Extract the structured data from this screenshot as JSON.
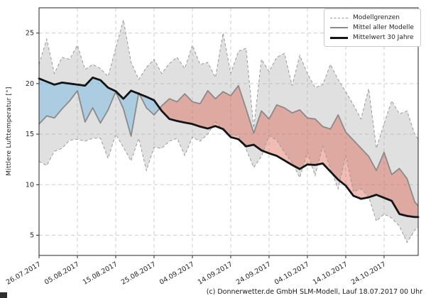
{
  "chart_data": {
    "type": "area",
    "title": "",
    "ylabel": "Mittlere Lufttemperatur [°]",
    "caption": "(c) Donnerwetter.de GmbH SLM-Modell, Lauf 18.07.2017 00 Uhr",
    "grid": true,
    "legend": {
      "position": "top-right",
      "entries": [
        {
          "label": "Modellgrenzen",
          "style": "dashed-gray"
        },
        {
          "label": "Mittel aller Modelle",
          "style": "solid-gray"
        },
        {
          "label": "Mittelwert 30 Jahre",
          "style": "thick-black"
        }
      ]
    },
    "x_unit": "days since 26.07.2017",
    "x_tick_labels": [
      "26.07.2017",
      "05.08.2017",
      "15.08.2017",
      "25.08.2017",
      "04.09.2017",
      "14.09.2017",
      "24.09.2017",
      "04.10.2017",
      "14.10.2017",
      "24.10.2017"
    ],
    "x_tick_days": [
      0,
      10,
      20,
      30,
      40,
      50,
      60,
      70,
      80,
      90
    ],
    "xlim_days": [
      0,
      98.9
    ],
    "ylim": [
      3,
      27.5
    ],
    "yticks": [
      5,
      10,
      15,
      20,
      25
    ],
    "x_days": [
      0,
      2,
      4,
      6,
      8,
      10,
      12,
      14,
      16,
      18,
      20,
      22,
      24,
      26,
      28,
      30,
      32,
      34,
      36,
      38,
      40,
      42,
      44,
      46,
      48,
      50,
      52,
      54,
      56,
      58,
      60,
      62,
      64,
      66,
      68,
      70,
      72,
      74,
      76,
      78,
      80,
      82,
      84,
      86,
      88,
      90,
      92,
      94,
      96,
      98,
      99
    ],
    "series": [
      {
        "name": "Modellgrenzen (obere Grenze)",
        "role": "upper_bound",
        "values": [
          21.9,
          24.4,
          21.0,
          22.6,
          22.4,
          23.8,
          21.4,
          21.9,
          21.5,
          20.7,
          23.5,
          26.3,
          22.1,
          20.4,
          21.6,
          22.4,
          21.0,
          22.0,
          22.6,
          21.5,
          23.8,
          21.9,
          22.1,
          20.6,
          25.0,
          21.0,
          23.2,
          23.5,
          15.6,
          22.4,
          21.2,
          22.6,
          23.0,
          19.8,
          22.8,
          21.0,
          19.6,
          19.9,
          21.9,
          20.4,
          19.2,
          17.9,
          16.5,
          19.5,
          13.6,
          16.0,
          18.3,
          17.0,
          17.3,
          15.0,
          14.5
        ]
      },
      {
        "name": "Modellgrenzen (untere Grenze)",
        "role": "lower_bound",
        "values": [
          12.3,
          11.9,
          13.3,
          13.6,
          14.4,
          14.5,
          14.3,
          14.6,
          14.6,
          12.6,
          15.0,
          13.7,
          12.35,
          14.6,
          11.4,
          13.7,
          13.6,
          14.3,
          14.6,
          12.9,
          14.7,
          14.3,
          15.0,
          16.2,
          15.4,
          14.9,
          14.9,
          13.5,
          11.7,
          12.8,
          14.85,
          14.4,
          13.2,
          12.2,
          10.7,
          13.2,
          10.9,
          13.8,
          11.6,
          9.6,
          12.9,
          9.3,
          9.6,
          8.8,
          6.4,
          7.1,
          6.7,
          5.9,
          4.3,
          5.5,
          5.8
        ]
      },
      {
        "name": "Mittel aller Modelle",
        "role": "model_mean",
        "values": [
          16.0,
          16.8,
          16.6,
          17.5,
          18.3,
          19.3,
          16.2,
          17.6,
          16.1,
          17.4,
          19.2,
          17.5,
          14.8,
          19.1,
          17.6,
          16.9,
          17.8,
          18.5,
          18.2,
          19.0,
          18.2,
          18.0,
          19.3,
          18.5,
          19.2,
          18.8,
          19.8,
          17.5,
          15.1,
          17.3,
          16.5,
          17.9,
          17.6,
          17.1,
          17.4,
          16.6,
          16.5,
          15.75,
          15.5,
          16.9,
          15.2,
          14.4,
          13.6,
          12.8,
          11.4,
          13.2,
          11.0,
          11.6,
          10.6,
          8.3,
          7.9
        ]
      },
      {
        "name": "Mittelwert 30 Jahre",
        "role": "climate_mean",
        "values": [
          20.5,
          20.2,
          19.9,
          20.1,
          20.0,
          19.9,
          19.8,
          20.6,
          20.35,
          19.6,
          19.25,
          18.5,
          19.3,
          19.0,
          18.7,
          18.35,
          17.3,
          16.5,
          16.3,
          16.15,
          16.0,
          15.75,
          15.55,
          15.8,
          15.5,
          14.7,
          14.5,
          13.8,
          13.95,
          13.4,
          13.1,
          12.85,
          12.4,
          11.95,
          11.55,
          12.0,
          11.95,
          12.1,
          11.3,
          10.5,
          9.9,
          8.9,
          8.6,
          8.75,
          9.0,
          8.7,
          8.4,
          7.1,
          6.9,
          6.8,
          6.8
        ]
      }
    ],
    "colors": {
      "band_fill": "rgba(166,166,166,0.35)",
      "bounds_line": "#999999",
      "warm_anomaly_fill": "rgba(219,88,65,0.40)",
      "cool_anomaly_fill": "rgba(120,185,225,0.50)",
      "model_mean_line": "#8a8a8a",
      "climate_mean_line": "#141414",
      "grid_line": "#cdcdcd",
      "frame": "#262626"
    }
  }
}
